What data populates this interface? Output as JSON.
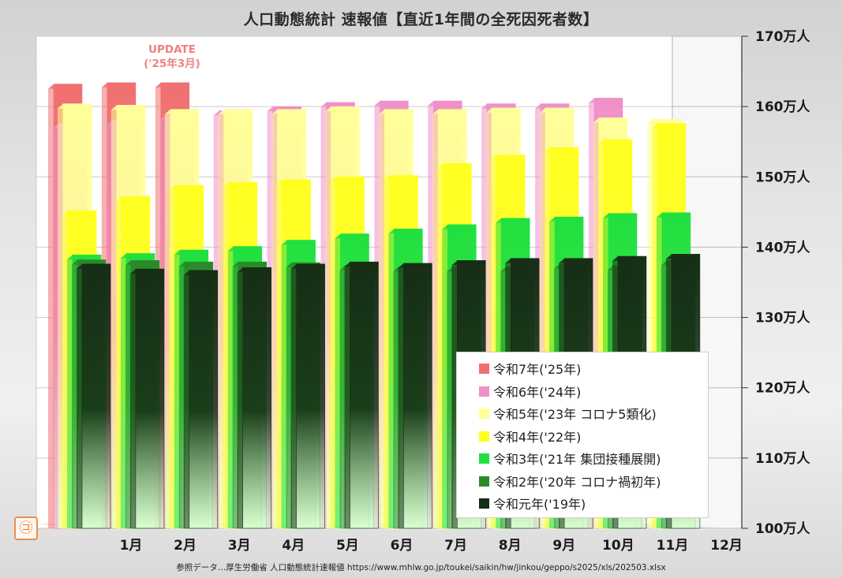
{
  "title": "人口動態統計 速報値【直近1年間の全死因死者数】",
  "update_note": {
    "line1": "UPDATE",
    "line2": "('25年3月)"
  },
  "source": "参照データ…厚生労働省 人口動態統計速報値 https://www.mhlw.go.jp/toukei/saikin/hw/jinkou/geppo/s2025/xls/202503.xlsx",
  "logo_icon": "circled-character-logo-icon",
  "chart_data": {
    "type": "bar",
    "title": "人口動態統計 速報値【直近1年間の全死因死者数】",
    "categories": [
      "1月",
      "2月",
      "3月",
      "4月",
      "5月",
      "6月",
      "7月",
      "8月",
      "9月",
      "10月",
      "11月",
      "12月"
    ],
    "y_ticks": [
      "100万人",
      "110万人",
      "120万人",
      "130万人",
      "140万人",
      "150万人",
      "160万人",
      "170万人"
    ],
    "ylim": [
      100,
      170
    ],
    "unit": "万人",
    "grid": true,
    "legend_position": "bottom-right",
    "series": [
      {
        "name": "令和7年('25年)",
        "color": "#f07070",
        "values": [
          163.2,
          163.4,
          163.4,
          null,
          null,
          null,
          null,
          null,
          null,
          null,
          null,
          null
        ]
      },
      {
        "name": "令和6年('24年)",
        "color": "#f090c8",
        "values": [
          157.6,
          158.0,
          158.8,
          159.4,
          160.0,
          160.6,
          160.8,
          160.8,
          160.4,
          160.4,
          161.2,
          null
        ]
      },
      {
        "name": "令和5年('23年 コロナ5類化)",
        "color": "#ffff99",
        "values": [
          160.4,
          160.2,
          159.6,
          159.6,
          159.6,
          160.0,
          159.6,
          159.6,
          159.8,
          159.8,
          158.4,
          158.2
        ]
      },
      {
        "name": "令和4年('22年)",
        "color": "#ffff20",
        "values": [
          145.2,
          147.2,
          148.8,
          149.2,
          149.6,
          150.0,
          150.2,
          151.9,
          153.1,
          154.2,
          155.3,
          157.6
        ]
      },
      {
        "name": "令和3年('21年 集団接種展開)",
        "color": "#20e040",
        "values": [
          138.9,
          139.1,
          139.6,
          140.1,
          141.0,
          141.9,
          142.6,
          143.2,
          144.1,
          144.3,
          144.8,
          144.9
        ]
      },
      {
        "name": "令和2年('20年 コロナ禍初年)",
        "color": "#2a8a2a",
        "values": [
          138.2,
          138.1,
          137.9,
          137.9,
          137.8,
          137.4,
          137.2,
          137.2,
          137.2,
          137.6,
          137.4,
          138.1
        ]
      },
      {
        "name": "令和元年('19年)",
        "color": "#162e16",
        "values": [
          137.6,
          136.9,
          136.7,
          137.1,
          137.6,
          137.9,
          137.7,
          138.1,
          138.4,
          138.4,
          138.7,
          139.0
        ]
      }
    ]
  }
}
